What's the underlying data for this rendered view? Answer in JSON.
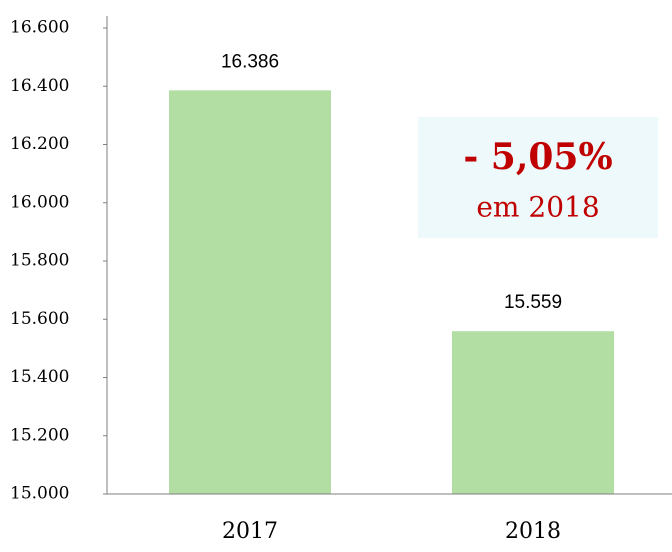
{
  "chart_data": {
    "type": "bar",
    "categories": [
      "2017",
      "2018"
    ],
    "values": [
      16386,
      15559
    ],
    "value_labels": [
      "16.386",
      "15.559"
    ],
    "color": "#b2dea4",
    "ylim": [
      15000,
      16600
    ],
    "yticks": [
      {
        "value": 15000,
        "label": "15.000"
      },
      {
        "value": 15200,
        "label": "15.200"
      },
      {
        "value": 15400,
        "label": "15.400"
      },
      {
        "value": 15600,
        "label": "15.600"
      },
      {
        "value": 15800,
        "label": "15.800"
      },
      {
        "value": 16000,
        "label": "16.000"
      },
      {
        "value": 16200,
        "label": "16.200"
      },
      {
        "value": 16400,
        "label": "16.400"
      },
      {
        "value": 16600,
        "label": "16.600"
      }
    ],
    "annotation": {
      "value_text": "- 5,05%",
      "text": "em 2018"
    }
  }
}
